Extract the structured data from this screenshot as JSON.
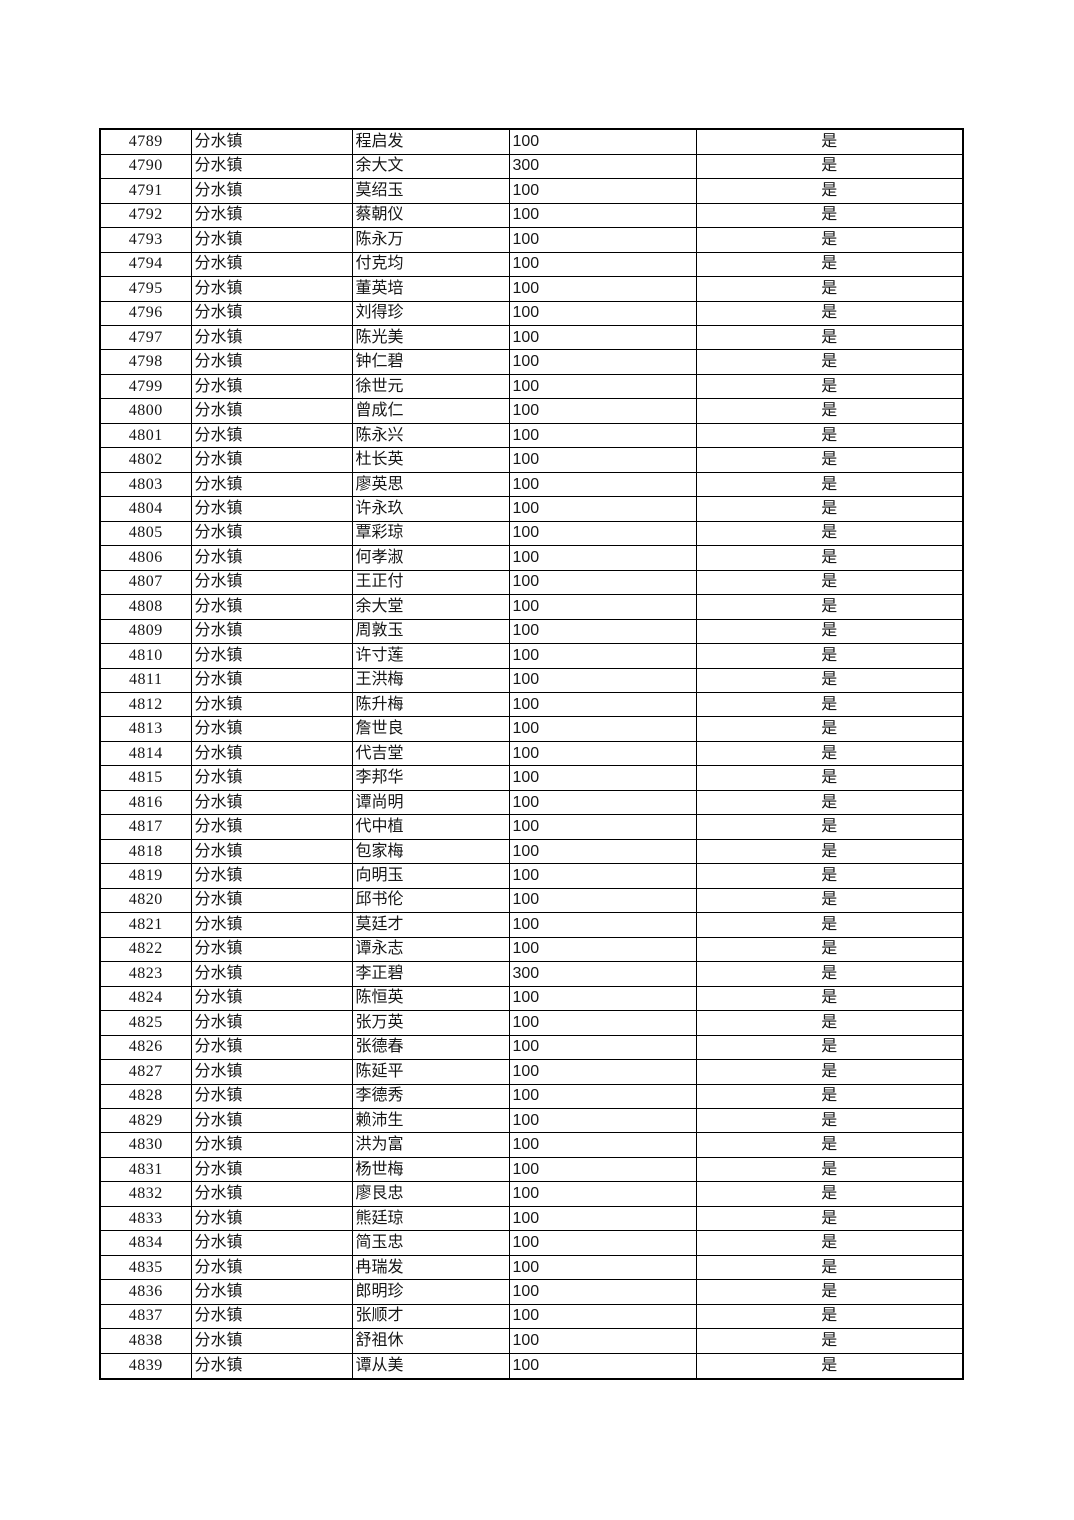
{
  "page": {
    "background_color": "#ffffff",
    "border_color": "#000000",
    "text_color": "#161616"
  },
  "table": {
    "column_semantics": [
      "row-id-cell",
      "town-cell",
      "name-cell",
      "amount-cell",
      "confirmed-cell"
    ],
    "rows": [
      [
        "4789",
        "分水镇",
        "程启发",
        "100",
        "是"
      ],
      [
        "4790",
        "分水镇",
        "余大文",
        "300",
        "是"
      ],
      [
        "4791",
        "分水镇",
        "莫绍玉",
        "100",
        "是"
      ],
      [
        "4792",
        "分水镇",
        "蔡朝仪",
        "100",
        "是"
      ],
      [
        "4793",
        "分水镇",
        "陈永万",
        "100",
        "是"
      ],
      [
        "4794",
        "分水镇",
        "付克均",
        "100",
        "是"
      ],
      [
        "4795",
        "分水镇",
        "董英培",
        "100",
        "是"
      ],
      [
        "4796",
        "分水镇",
        "刘得珍",
        "100",
        "是"
      ],
      [
        "4797",
        "分水镇",
        "陈光美",
        "100",
        "是"
      ],
      [
        "4798",
        "分水镇",
        "钟仁碧",
        "100",
        "是"
      ],
      [
        "4799",
        "分水镇",
        "徐世元",
        "100",
        "是"
      ],
      [
        "4800",
        "分水镇",
        "曾成仁",
        "100",
        "是"
      ],
      [
        "4801",
        "分水镇",
        "陈永兴",
        "100",
        "是"
      ],
      [
        "4802",
        "分水镇",
        "杜长英",
        "100",
        "是"
      ],
      [
        "4803",
        "分水镇",
        "廖英思",
        "100",
        "是"
      ],
      [
        "4804",
        "分水镇",
        "许永玖",
        "100",
        "是"
      ],
      [
        "4805",
        "分水镇",
        "覃彩琼",
        "100",
        "是"
      ],
      [
        "4806",
        "分水镇",
        "何孝淑",
        "100",
        "是"
      ],
      [
        "4807",
        "分水镇",
        "王正付",
        "100",
        "是"
      ],
      [
        "4808",
        "分水镇",
        "余大堂",
        "100",
        "是"
      ],
      [
        "4809",
        "分水镇",
        "周敦玉",
        "100",
        "是"
      ],
      [
        "4810",
        "分水镇",
        "许寸莲",
        "100",
        "是"
      ],
      [
        "4811",
        "分水镇",
        "王洪梅",
        "100",
        "是"
      ],
      [
        "4812",
        "分水镇",
        "陈升梅",
        "100",
        "是"
      ],
      [
        "4813",
        "分水镇",
        "詹世良",
        "100",
        "是"
      ],
      [
        "4814",
        "分水镇",
        "代吉堂",
        "100",
        "是"
      ],
      [
        "4815",
        "分水镇",
        "李邦华",
        "100",
        "是"
      ],
      [
        "4816",
        "分水镇",
        "谭尚明",
        "100",
        "是"
      ],
      [
        "4817",
        "分水镇",
        "代中植",
        "100",
        "是"
      ],
      [
        "4818",
        "分水镇",
        "包家梅",
        "100",
        "是"
      ],
      [
        "4819",
        "分水镇",
        "向明玉",
        "100",
        "是"
      ],
      [
        "4820",
        "分水镇",
        "邱书伦",
        "100",
        "是"
      ],
      [
        "4821",
        "分水镇",
        "莫廷才",
        "100",
        "是"
      ],
      [
        "4822",
        "分水镇",
        "谭永志",
        "100",
        "是"
      ],
      [
        "4823",
        "分水镇",
        "李正碧",
        "300",
        "是"
      ],
      [
        "4824",
        "分水镇",
        "陈恒英",
        "100",
        "是"
      ],
      [
        "4825",
        "分水镇",
        "张万英",
        "100",
        "是"
      ],
      [
        "4826",
        "分水镇",
        "张德春",
        "100",
        "是"
      ],
      [
        "4827",
        "分水镇",
        "陈延平",
        "100",
        "是"
      ],
      [
        "4828",
        "分水镇",
        "李德秀",
        "100",
        "是"
      ],
      [
        "4829",
        "分水镇",
        "赖沛生",
        "100",
        "是"
      ],
      [
        "4830",
        "分水镇",
        "洪为富",
        "100",
        "是"
      ],
      [
        "4831",
        "分水镇",
        "杨世梅",
        "100",
        "是"
      ],
      [
        "4832",
        "分水镇",
        "廖艮忠",
        "100",
        "是"
      ],
      [
        "4833",
        "分水镇",
        "熊廷琼",
        "100",
        "是"
      ],
      [
        "4834",
        "分水镇",
        "简玉忠",
        "100",
        "是"
      ],
      [
        "4835",
        "分水镇",
        "冉瑞发",
        "100",
        "是"
      ],
      [
        "4836",
        "分水镇",
        "郎明珍",
        "100",
        "是"
      ],
      [
        "4837",
        "分水镇",
        "张顺才",
        "100",
        "是"
      ],
      [
        "4838",
        "分水镇",
        "舒祖休",
        "100",
        "是"
      ],
      [
        "4839",
        "分水镇",
        "谭从美",
        "100",
        "是"
      ]
    ]
  }
}
